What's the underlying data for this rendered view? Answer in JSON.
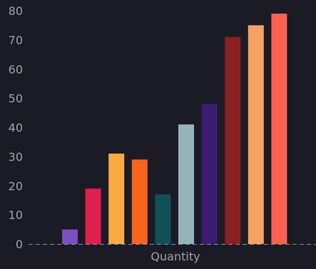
{
  "chart_data": {
    "type": "bar",
    "xlabel": "Quantity",
    "ylabel": "",
    "title": "",
    "ylim": [
      0,
      80
    ],
    "yticks": [
      0,
      10,
      20,
      30,
      40,
      50,
      60,
      70,
      80
    ],
    "grid": false,
    "legend": "none",
    "categories": [
      "",
      "",
      "",
      "",
      "",
      "",
      "",
      "",
      "",
      ""
    ],
    "values": [
      5,
      19,
      31,
      29,
      17,
      41,
      48,
      71,
      75,
      79
    ],
    "colors": [
      "#7a4fc2",
      "#e0204f",
      "#fbaa42",
      "#f8631e",
      "#12505a",
      "#96b4bb",
      "#3a1c72",
      "#8a2020",
      "#f5a262",
      "#fb6150"
    ],
    "baseline_style": "dashed",
    "background": "#1b1b26",
    "text_color": "#a0a0a8"
  }
}
